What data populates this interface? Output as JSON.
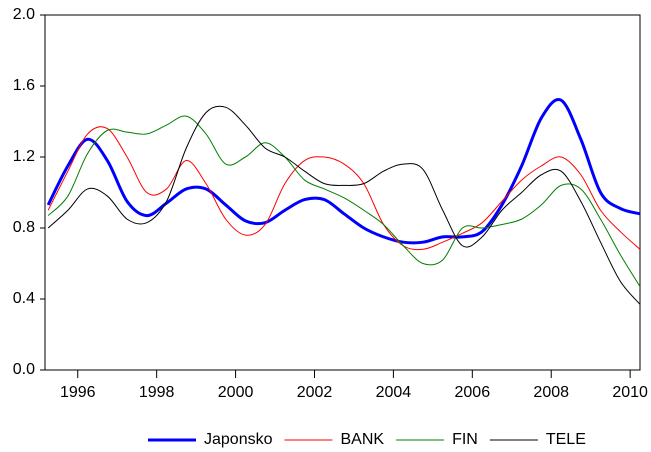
{
  "chart_data": {
    "type": "line",
    "x": [
      1995.25,
      1995.75,
      1996.25,
      1996.75,
      1997.25,
      1997.75,
      1998.25,
      1998.75,
      1999.25,
      1999.75,
      2000.25,
      2000.75,
      2001.25,
      2001.75,
      2002.25,
      2002.75,
      2003.25,
      2003.75,
      2004.25,
      2004.75,
      2005.25,
      2005.75,
      2006.25,
      2006.75,
      2007.25,
      2007.75,
      2008.25,
      2008.75,
      2009.25,
      2009.75,
      2010.25
    ],
    "series": [
      {
        "name": "Japonsko",
        "color": "#0000ff",
        "values": [
          0.93,
          1.15,
          1.3,
          1.18,
          0.95,
          0.87,
          0.94,
          1.02,
          1.02,
          0.93,
          0.84,
          0.83,
          0.9,
          0.96,
          0.96,
          0.88,
          0.8,
          0.75,
          0.72,
          0.72,
          0.75,
          0.75,
          0.78,
          0.93,
          1.15,
          1.42,
          1.52,
          1.3,
          1.0,
          0.91,
          0.88
        ]
      },
      {
        "name": "BANK",
        "color": "#ff0000",
        "values": [
          0.9,
          1.12,
          1.33,
          1.36,
          1.2,
          1.0,
          1.02,
          1.18,
          1.05,
          0.85,
          0.76,
          0.82,
          1.05,
          1.18,
          1.2,
          1.16,
          1.05,
          0.82,
          0.7,
          0.68,
          0.72,
          0.77,
          0.83,
          0.95,
          1.07,
          1.15,
          1.2,
          1.1,
          0.9,
          0.78,
          0.68
        ]
      },
      {
        "name": "FIN",
        "color": "#008000",
        "values": [
          0.87,
          0.98,
          1.22,
          1.35,
          1.34,
          1.33,
          1.38,
          1.43,
          1.33,
          1.16,
          1.2,
          1.28,
          1.2,
          1.07,
          1.02,
          0.97,
          0.9,
          0.82,
          0.7,
          0.6,
          0.62,
          0.8,
          0.8,
          0.82,
          0.85,
          0.93,
          1.04,
          1.02,
          0.85,
          0.65,
          0.47
        ]
      },
      {
        "name": "TELE",
        "color": "#000000",
        "values": [
          0.8,
          0.9,
          1.02,
          0.98,
          0.85,
          0.83,
          0.95,
          1.25,
          1.45,
          1.48,
          1.38,
          1.25,
          1.2,
          1.12,
          1.05,
          1.04,
          1.05,
          1.12,
          1.16,
          1.13,
          0.9,
          0.7,
          0.75,
          0.9,
          1.0,
          1.1,
          1.12,
          0.95,
          0.72,
          0.5,
          0.37
        ]
      }
    ],
    "xlim": [
      1995.17,
      2010.25
    ],
    "xticks": [
      1996,
      1998,
      2000,
      2002,
      2004,
      2006,
      2008,
      2010
    ],
    "ylim": [
      0,
      2
    ],
    "yticks": [
      {
        "value": 0,
        "label": "0.0"
      },
      0.4,
      0.8,
      1.2,
      1.6,
      {
        "value": 2,
        "label": "2.0"
      }
    ],
    "legend": "bottom"
  }
}
